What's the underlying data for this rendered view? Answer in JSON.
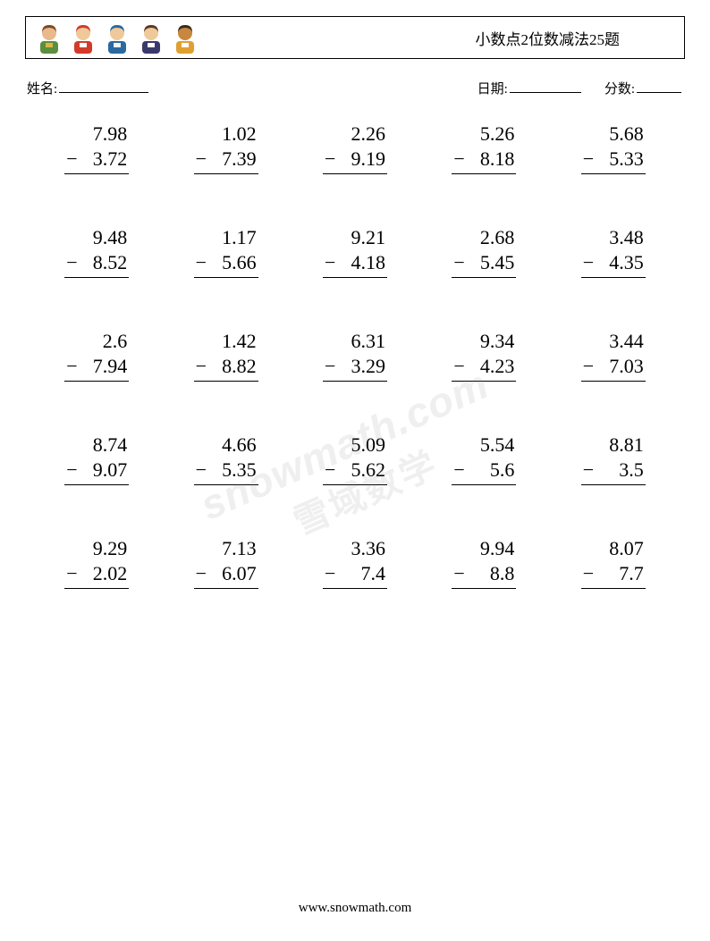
{
  "header": {
    "title": "小数点2位数减法25题"
  },
  "info": {
    "name_label": "姓名:",
    "date_label": "日期:",
    "score_label": "分数:"
  },
  "avatars": [
    {
      "skin": "#e8b98a",
      "body": "#5a8f3e",
      "hair": "#7a4a20",
      "accent": "#d9b54a"
    },
    {
      "skin": "#f0c99a",
      "body": "#d23a2a",
      "hair": "#d23a2a",
      "accent": "#ffffff"
    },
    {
      "skin": "#f0c99a",
      "body": "#2a6aa0",
      "hair": "#2a6aa0",
      "accent": "#f5f5f5"
    },
    {
      "skin": "#f0c99a",
      "body": "#3a3a6a",
      "hair": "#5a3a20",
      "accent": "#ffffff"
    },
    {
      "skin": "#c9863e",
      "body": "#e0a030",
      "hair": "#3a2a18",
      "accent": "#ffffff"
    }
  ],
  "problems": {
    "operator": "−",
    "columns": 5,
    "rows": 5,
    "font_size": 22,
    "text_color": "#000000",
    "rule_color": "#000000",
    "items": [
      {
        "a": "7.98",
        "b": "3.72"
      },
      {
        "a": "1.02",
        "b": "7.39"
      },
      {
        "a": "2.26",
        "b": "9.19"
      },
      {
        "a": "5.26",
        "b": "8.18"
      },
      {
        "a": "5.68",
        "b": "5.33"
      },
      {
        "a": "9.48",
        "b": "8.52"
      },
      {
        "a": "1.17",
        "b": "5.66"
      },
      {
        "a": "9.21",
        "b": "4.18"
      },
      {
        "a": "2.68",
        "b": "5.45"
      },
      {
        "a": "3.48",
        "b": "4.35"
      },
      {
        "a": "2.6",
        "b": "7.94"
      },
      {
        "a": "1.42",
        "b": "8.82"
      },
      {
        "a": "6.31",
        "b": "3.29"
      },
      {
        "a": "9.34",
        "b": "4.23"
      },
      {
        "a": "3.44",
        "b": "7.03"
      },
      {
        "a": "8.74",
        "b": "9.07"
      },
      {
        "a": "4.66",
        "b": "5.35"
      },
      {
        "a": "5.09",
        "b": "5.62"
      },
      {
        "a": "5.54",
        "b": "5.6"
      },
      {
        "a": "8.81",
        "b": "3.5"
      },
      {
        "a": "9.29",
        "b": "2.02"
      },
      {
        "a": "7.13",
        "b": "6.07"
      },
      {
        "a": "3.36",
        "b": "7.4"
      },
      {
        "a": "9.94",
        "b": "8.8"
      },
      {
        "a": "8.07",
        "b": "7.7"
      }
    ]
  },
  "watermark": {
    "line1": "snowmath.com",
    "line2": "雪域数学"
  },
  "footer": {
    "url": "www.snowmath.com"
  }
}
